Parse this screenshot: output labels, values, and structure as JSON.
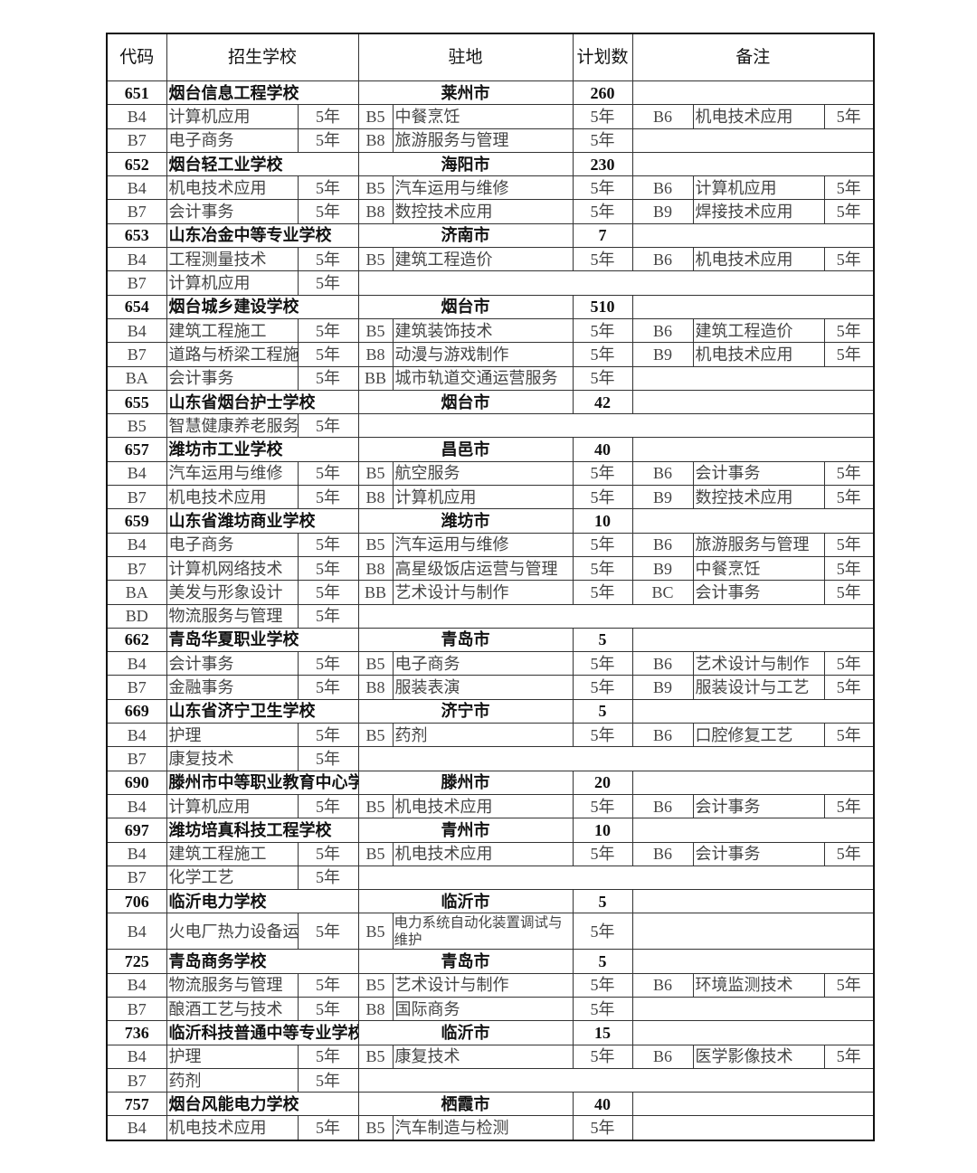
{
  "header": {
    "code": "代码",
    "school": "招生学校",
    "location": "驻地",
    "plan": "计划数",
    "remark": "备注"
  },
  "duration_label": "5年",
  "schools": [
    {
      "code": "651",
      "name": "烟台信息工程学校",
      "location": "莱州市",
      "plan": "260",
      "majors": [
        [
          "B4",
          "计算机应用"
        ],
        [
          "B5",
          "中餐烹饪"
        ],
        [
          "B6",
          "机电技术应用"
        ],
        [
          "B7",
          "电子商务"
        ],
        [
          "B8",
          "旅游服务与管理"
        ]
      ]
    },
    {
      "code": "652",
      "name": "烟台轻工业学校",
      "location": "海阳市",
      "plan": "230",
      "majors": [
        [
          "B4",
          "机电技术应用"
        ],
        [
          "B5",
          "汽车运用与维修"
        ],
        [
          "B6",
          "计算机应用"
        ],
        [
          "B7",
          "会计事务"
        ],
        [
          "B8",
          "数控技术应用"
        ],
        [
          "B9",
          "焊接技术应用"
        ]
      ]
    },
    {
      "code": "653",
      "name": "山东冶金中等专业学校",
      "location": "济南市",
      "plan": "7",
      "majors": [
        [
          "B4",
          "工程测量技术"
        ],
        [
          "B5",
          "建筑工程造价"
        ],
        [
          "B6",
          "机电技术应用"
        ],
        [
          "B7",
          "计算机应用"
        ]
      ]
    },
    {
      "code": "654",
      "name": "烟台城乡建设学校",
      "location": "烟台市",
      "plan": "510",
      "majors": [
        [
          "B4",
          "建筑工程施工"
        ],
        [
          "B5",
          "建筑装饰技术"
        ],
        [
          "B6",
          "建筑工程造价"
        ],
        [
          "B7",
          "道路与桥梁工程施工"
        ],
        [
          "B8",
          "动漫与游戏制作"
        ],
        [
          "B9",
          "机电技术应用"
        ],
        [
          "BA",
          "会计事务"
        ],
        [
          "BB",
          "城市轨道交通运营服务"
        ]
      ]
    },
    {
      "code": "655",
      "name": "山东省烟台护士学校",
      "location": "烟台市",
      "plan": "42",
      "majors": [
        [
          "B5",
          "智慧健康养老服务"
        ]
      ]
    },
    {
      "code": "657",
      "name": "潍坊市工业学校",
      "location": "昌邑市",
      "plan": "40",
      "majors": [
        [
          "B4",
          "汽车运用与维修"
        ],
        [
          "B5",
          "航空服务"
        ],
        [
          "B6",
          "会计事务"
        ],
        [
          "B7",
          "机电技术应用"
        ],
        [
          "B8",
          "计算机应用"
        ],
        [
          "B9",
          "数控技术应用"
        ]
      ]
    },
    {
      "code": "659",
      "name": "山东省潍坊商业学校",
      "location": "潍坊市",
      "plan": "10",
      "majors": [
        [
          "B4",
          "电子商务"
        ],
        [
          "B5",
          "汽车运用与维修"
        ],
        [
          "B6",
          "旅游服务与管理"
        ],
        [
          "B7",
          "计算机网络技术"
        ],
        [
          "B8",
          "高星级饭店运营与管理"
        ],
        [
          "B9",
          "中餐烹饪"
        ],
        [
          "BA",
          "美发与形象设计"
        ],
        [
          "BB",
          "艺术设计与制作"
        ],
        [
          "BC",
          "会计事务"
        ],
        [
          "BD",
          "物流服务与管理"
        ]
      ]
    },
    {
      "code": "662",
      "name": "青岛华夏职业学校",
      "location": "青岛市",
      "plan": "5",
      "majors": [
        [
          "B4",
          "会计事务"
        ],
        [
          "B5",
          "电子商务"
        ],
        [
          "B6",
          "艺术设计与制作"
        ],
        [
          "B7",
          "金融事务"
        ],
        [
          "B8",
          "服装表演"
        ],
        [
          "B9",
          "服装设计与工艺"
        ]
      ]
    },
    {
      "code": "669",
      "name": "山东省济宁卫生学校",
      "location": "济宁市",
      "plan": "5",
      "majors": [
        [
          "B4",
          "护理"
        ],
        [
          "B5",
          "药剂"
        ],
        [
          "B6",
          "口腔修复工艺"
        ],
        [
          "B7",
          "康复技术"
        ]
      ]
    },
    {
      "code": "690",
      "name": "滕州市中等职业教育中心学校",
      "location": "滕州市",
      "plan": "20",
      "majors": [
        [
          "B4",
          "计算机应用"
        ],
        [
          "B5",
          "机电技术应用"
        ],
        [
          "B6",
          "会计事务"
        ]
      ]
    },
    {
      "code": "697",
      "name": "潍坊培真科技工程学校",
      "location": "青州市",
      "plan": "10",
      "majors": [
        [
          "B4",
          "建筑工程施工"
        ],
        [
          "B5",
          "机电技术应用"
        ],
        [
          "B6",
          "会计事务"
        ],
        [
          "B7",
          "化学工艺"
        ]
      ]
    },
    {
      "code": "706",
      "name": "临沂电力学校",
      "location": "临沂市",
      "plan": "5",
      "majors": [
        [
          "B4",
          "火电厂热力设备运行与检修"
        ],
        [
          "B5",
          "电力系统自动化装置调试与维护"
        ]
      ]
    },
    {
      "code": "725",
      "name": "青岛商务学校",
      "location": "青岛市",
      "plan": "5",
      "majors": [
        [
          "B4",
          "物流服务与管理"
        ],
        [
          "B5",
          "艺术设计与制作"
        ],
        [
          "B6",
          "环境监测技术"
        ],
        [
          "B7",
          "酿酒工艺与技术"
        ],
        [
          "B8",
          "国际商务"
        ]
      ]
    },
    {
      "code": "736",
      "name": "临沂科技普通中等专业学校",
      "location": "临沂市",
      "plan": "15",
      "majors": [
        [
          "B4",
          "护理"
        ],
        [
          "B5",
          "康复技术"
        ],
        [
          "B6",
          "医学影像技术"
        ],
        [
          "B7",
          "药剂"
        ]
      ]
    },
    {
      "code": "757",
      "name": "烟台风能电力学校",
      "location": "栖霞市",
      "plan": "40",
      "majors": [
        [
          "B4",
          "机电技术应用"
        ],
        [
          "B5",
          "汽车制造与检测"
        ]
      ]
    }
  ]
}
